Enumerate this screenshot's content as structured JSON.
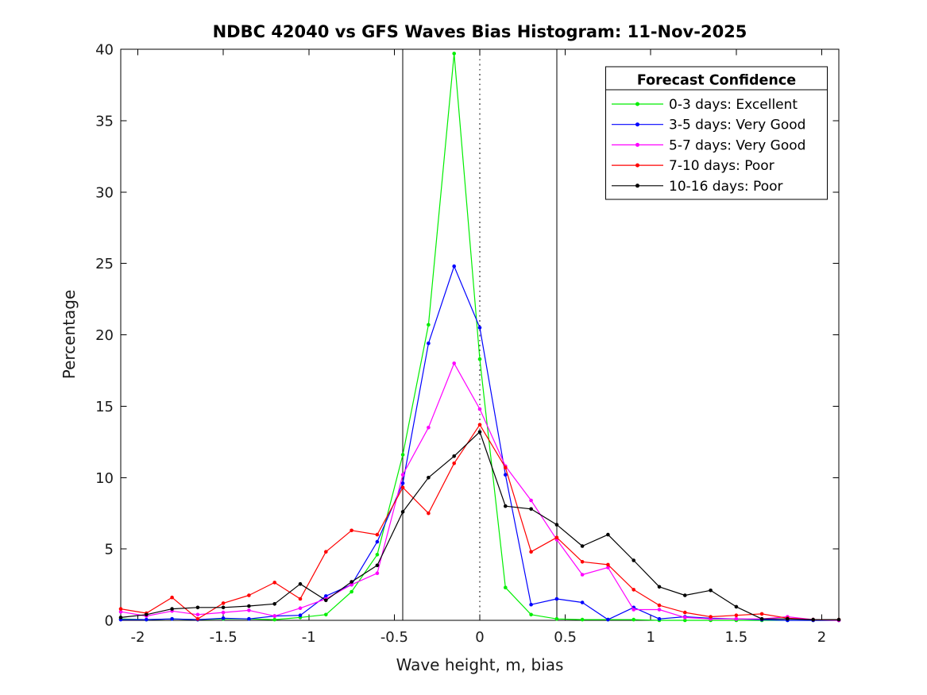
{
  "chart_data": {
    "type": "line",
    "title": "NDBC 42040 vs GFS Waves Bias Histogram: 11-Nov-2025",
    "xlabel": "Wave height, m, bias",
    "ylabel": "Percentage",
    "xlim": [
      -2.1,
      2.1
    ],
    "ylim": [
      0,
      40
    ],
    "grid": false,
    "legend_position": "top-right",
    "legend_title": "Forecast Confidence",
    "marker": "dot",
    "xticks": [
      {
        "value": -2,
        "label": "-2"
      },
      {
        "value": -1.5,
        "label": "-1.5"
      },
      {
        "value": -1,
        "label": "-1"
      },
      {
        "value": -0.5,
        "label": "-0.5"
      },
      {
        "value": 0,
        "label": "0"
      },
      {
        "value": 0.5,
        "label": "0.5"
      },
      {
        "value": 1,
        "label": "1"
      },
      {
        "value": 1.5,
        "label": "1.5"
      },
      {
        "value": 2,
        "label": "2"
      }
    ],
    "yticks": [
      {
        "value": 0,
        "label": "0"
      },
      {
        "value": 5,
        "label": "5"
      },
      {
        "value": 10,
        "label": "10"
      },
      {
        "value": 15,
        "label": "15"
      },
      {
        "value": 20,
        "label": "20"
      },
      {
        "value": 25,
        "label": "25"
      },
      {
        "value": 30,
        "label": "30"
      },
      {
        "value": 35,
        "label": "35"
      },
      {
        "value": 40,
        "label": "40"
      }
    ],
    "reference_lines": [
      {
        "x": -0.45,
        "style": "solid",
        "color": "#000000"
      },
      {
        "x": 0,
        "style": "dotted",
        "color": "#000000"
      },
      {
        "x": 0.45,
        "style": "solid",
        "color": "#000000"
      }
    ],
    "x": [
      -2.1,
      -1.95,
      -1.8,
      -1.65,
      -1.5,
      -1.35,
      -1.2,
      -1.05,
      -0.9,
      -0.75,
      -0.6,
      -0.45,
      -0.3,
      -0.15,
      0,
      0.15,
      0.3,
      0.45,
      0.6,
      0.75,
      0.9,
      1.05,
      1.2,
      1.35,
      1.5,
      1.65,
      1.8,
      1.95,
      2.1
    ],
    "series": [
      {
        "id": "0-3-days",
        "name": "0-3 days: Excellent",
        "color": "#00ee00",
        "values": [
          0.1,
          0.05,
          0.1,
          0.05,
          0.1,
          0.1,
          0.05,
          0.2,
          0.4,
          2.0,
          4.6,
          11.6,
          20.7,
          39.7,
          18.3,
          2.3,
          0.4,
          0.1,
          0.05,
          0.05,
          0.05,
          0,
          0,
          0,
          0,
          0,
          0,
          0,
          0
        ]
      },
      {
        "id": "3-5-days",
        "name": "3-5 days: Very Good",
        "color": "#0000ff",
        "values": [
          0.05,
          0.05,
          0.1,
          0.05,
          0.15,
          0.1,
          0.3,
          0.35,
          1.7,
          2.5,
          5.5,
          9.6,
          19.4,
          24.8,
          20.5,
          10.2,
          1.1,
          1.5,
          1.25,
          0.05,
          0.9,
          0.1,
          0.25,
          0.15,
          0.1,
          0.05,
          0,
          0,
          0
        ]
      },
      {
        "id": "5-7-days",
        "name": "5-7 days: Very Good",
        "color": "#ff00ff",
        "values": [
          0.6,
          0.3,
          0.65,
          0.4,
          0.55,
          0.7,
          0.3,
          0.85,
          1.5,
          2.5,
          3.3,
          10.2,
          13.5,
          18.0,
          14.8,
          10.8,
          8.4,
          5.65,
          3.2,
          3.7,
          0.75,
          0.75,
          0.2,
          0.1,
          0.1,
          0.1,
          0.25,
          0.05,
          0
        ]
      },
      {
        "id": "7-10-days",
        "name": "7-10 days: Poor",
        "color": "#ff0000",
        "values": [
          0.8,
          0.5,
          1.6,
          0.1,
          1.2,
          1.75,
          2.65,
          1.5,
          4.8,
          6.3,
          6.0,
          9.3,
          7.5,
          11.0,
          13.7,
          10.7,
          4.8,
          5.8,
          4.1,
          3.9,
          2.15,
          1.05,
          0.55,
          0.25,
          0.35,
          0.45,
          0.15,
          0.05,
          0.05
        ]
      },
      {
        "id": "10-16-days",
        "name": "10-16 days: Poor",
        "color": "#000000",
        "values": [
          0.2,
          0.4,
          0.8,
          0.9,
          0.9,
          1.0,
          1.15,
          2.55,
          1.4,
          2.7,
          3.85,
          7.6,
          10.0,
          11.5,
          13.2,
          8.0,
          7.8,
          6.7,
          5.2,
          6.0,
          4.2,
          2.35,
          1.75,
          2.1,
          0.95,
          0.1,
          0.1,
          0.05,
          0.05
        ]
      }
    ]
  }
}
